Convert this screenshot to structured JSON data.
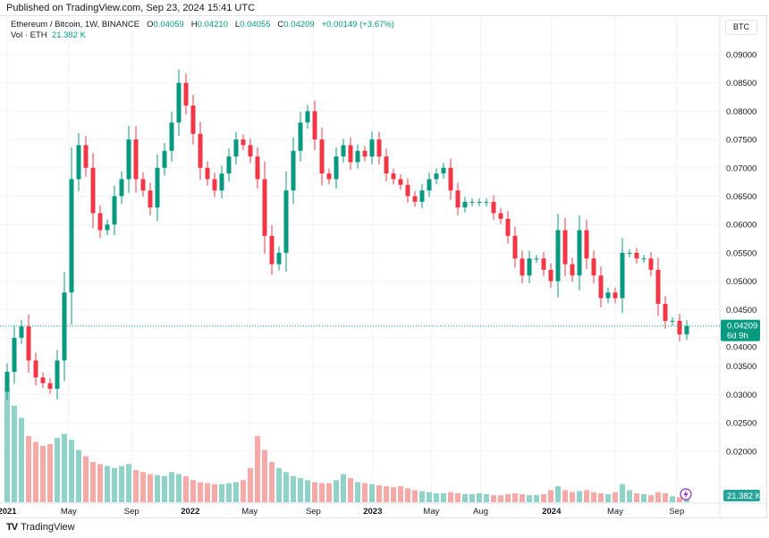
{
  "header": {
    "published": "Published on TradingView.com, Sep 23, 2024 15:41 UTC"
  },
  "legend": {
    "symbol": "Ethereum / Bitcoin, 1W, BINANCE",
    "o_label": "O",
    "o": "0.04059",
    "h_label": "H",
    "h": "0.04210",
    "l_label": "L",
    "l": "0.04055",
    "c_label": "C",
    "c": "0.04209",
    "change": "+0.00149 (+3.67%)",
    "vol_label": "Vol · ETH",
    "vol": "21.382 K"
  },
  "currency_button": "BTC",
  "footer": {
    "brand": "TradingView"
  },
  "colors": {
    "up": "#089981",
    "down": "#f23645",
    "vol_up": "#8fd3c8",
    "vol_down": "#f7a9a7",
    "grid": "#f0f3fa",
    "purple": "#9c27b0"
  },
  "chart_data": {
    "type": "candlestick",
    "ylim": [
      0.0175,
      0.0925
    ],
    "y_ticks": [
      "0.09000",
      "0.08500",
      "0.08000",
      "0.07500",
      "0.07000",
      "0.06500",
      "0.06000",
      "0.05500",
      "0.05000",
      "0.04500",
      "0.04000",
      "0.03500",
      "0.03000",
      "0.02500",
      "0.02000"
    ],
    "x_ticks": [
      {
        "label": "2021",
        "bold": true,
        "i": 0
      },
      {
        "label": "May",
        "i": 8.6
      },
      {
        "label": "Sep",
        "i": 17.4
      },
      {
        "label": "2022",
        "bold": true,
        "i": 25.6
      },
      {
        "label": "May",
        "i": 33.9
      },
      {
        "label": "Sep",
        "i": 42.8
      },
      {
        "label": "2023",
        "bold": true,
        "i": 51.1
      },
      {
        "label": "May",
        "i": 59.3
      },
      {
        "label": "Aug",
        "i": 66.2
      },
      {
        "label": "2024",
        "bold": true,
        "i": 76.1
      },
      {
        "label": "May",
        "i": 85
      },
      {
        "label": "Sep",
        "i": 93.6
      }
    ],
    "closes": [
      0.034,
      0.04,
      0.042,
      0.036,
      0.033,
      0.032,
      0.031,
      0.036,
      0.048,
      0.068,
      0.074,
      0.07,
      0.062,
      0.059,
      0.06,
      0.065,
      0.068,
      0.075,
      0.068,
      0.066,
      0.063,
      0.07,
      0.073,
      0.078,
      0.085,
      0.081,
      0.076,
      0.07,
      0.068,
      0.066,
      0.069,
      0.072,
      0.075,
      0.074,
      0.072,
      0.068,
      0.058,
      0.053,
      0.055,
      0.066,
      0.073,
      0.078,
      0.08,
      0.075,
      0.069,
      0.068,
      0.072,
      0.074,
      0.071,
      0.073,
      0.072,
      0.075,
      0.072,
      0.069,
      0.068,
      0.067,
      0.065,
      0.064,
      0.066,
      0.068,
      0.069,
      0.07,
      0.066,
      0.063,
      0.064,
      0.064,
      0.064,
      0.064,
      0.062,
      0.061,
      0.058,
      0.054,
      0.051,
      0.054,
      0.054,
      0.052,
      0.05,
      0.059,
      0.053,
      0.051,
      0.059,
      0.054,
      0.051,
      0.047,
      0.048,
      0.047,
      0.055,
      0.055,
      0.054,
      0.054,
      0.052,
      0.046,
      0.043,
      0.043,
      0.0406,
      0.04209
    ],
    "volumes_k": [
      560,
      480,
      420,
      330,
      300,
      280,
      290,
      320,
      340,
      310,
      260,
      230,
      200,
      190,
      180,
      170,
      180,
      190,
      160,
      150,
      140,
      135,
      130,
      150,
      140,
      130,
      110,
      100,
      95,
      90,
      90,
      95,
      100,
      110,
      170,
      330,
      260,
      200,
      170,
      150,
      130,
      120,
      110,
      100,
      95,
      95,
      110,
      140,
      120,
      100,
      95,
      90,
      85,
      80,
      75,
      80,
      70,
      60,
      55,
      50,
      45,
      45,
      50,
      45,
      40,
      40,
      45,
      40,
      35,
      35,
      40,
      45,
      40,
      35,
      35,
      40,
      60,
      80,
      60,
      50,
      55,
      60,
      50,
      45,
      40,
      50,
      90,
      60,
      45,
      40,
      35,
      50,
      45,
      30,
      25,
      21.382
    ],
    "current_price": "0.04209",
    "countdown": "6d 9h",
    "current_volume": "21.382 K"
  }
}
